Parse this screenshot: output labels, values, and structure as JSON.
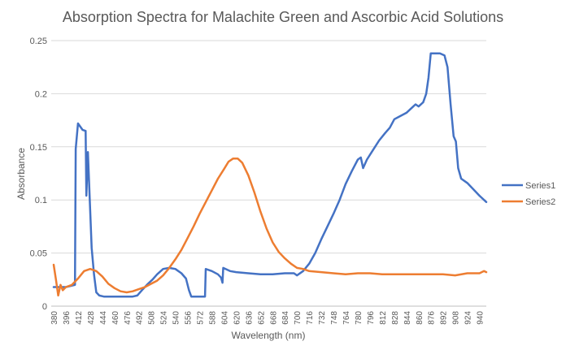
{
  "chart_data": {
    "type": "line",
    "title": "Absorption Spectra for Malachite Green and Ascorbic Acid Solutions",
    "xlabel": "Wavelength (nm)",
    "ylabel": "Absorbance",
    "xlim": [
      380,
      949
    ],
    "ylim": [
      0,
      0.25
    ],
    "yticks": [
      "0",
      "0.05",
      "0.1",
      "0.15",
      "0.2",
      "0.25"
    ],
    "xticks": [
      "380",
      "396",
      "412",
      "428",
      "444",
      "460",
      "476",
      "492",
      "508",
      "524",
      "540",
      "556",
      "572",
      "588",
      "604",
      "620",
      "636",
      "652",
      "668",
      "684",
      "700",
      "716",
      "732",
      "748",
      "764",
      "780",
      "796",
      "812",
      "828",
      "844",
      "860",
      "876",
      "892",
      "908",
      "924",
      "940"
    ],
    "grid": true,
    "legend": "right",
    "series": [
      {
        "name": "Series1",
        "color": "#4472C4",
        "points": [
          [
            380,
            0.018
          ],
          [
            396,
            0.018
          ],
          [
            408,
            0.02
          ],
          [
            409,
            0.148
          ],
          [
            412,
            0.172
          ],
          [
            418,
            0.166
          ],
          [
            422,
            0.165
          ],
          [
            423,
            0.104
          ],
          [
            425,
            0.145
          ],
          [
            428,
            0.09
          ],
          [
            430,
            0.055
          ],
          [
            433,
            0.03
          ],
          [
            436,
            0.013
          ],
          [
            440,
            0.01
          ],
          [
            446,
            0.009
          ],
          [
            452,
            0.009
          ],
          [
            460,
            0.009
          ],
          [
            468,
            0.009
          ],
          [
            476,
            0.009
          ],
          [
            484,
            0.009
          ],
          [
            490,
            0.01
          ],
          [
            496,
            0.015
          ],
          [
            504,
            0.021
          ],
          [
            510,
            0.025
          ],
          [
            516,
            0.03
          ],
          [
            524,
            0.035
          ],
          [
            532,
            0.036
          ],
          [
            540,
            0.035
          ],
          [
            548,
            0.031
          ],
          [
            554,
            0.026
          ],
          [
            558,
            0.015
          ],
          [
            561,
            0.009
          ],
          [
            566,
            0.009
          ],
          [
            576,
            0.009
          ],
          [
            579,
            0.009
          ],
          [
            580,
            0.035
          ],
          [
            588,
            0.033
          ],
          [
            596,
            0.03
          ],
          [
            600,
            0.027
          ],
          [
            602,
            0.022
          ],
          [
            603,
            0.036
          ],
          [
            612,
            0.033
          ],
          [
            620,
            0.032
          ],
          [
            636,
            0.031
          ],
          [
            652,
            0.03
          ],
          [
            668,
            0.03
          ],
          [
            684,
            0.031
          ],
          [
            696,
            0.031
          ],
          [
            700,
            0.029
          ],
          [
            708,
            0.033
          ],
          [
            716,
            0.04
          ],
          [
            724,
            0.05
          ],
          [
            732,
            0.063
          ],
          [
            740,
            0.075
          ],
          [
            748,
            0.087
          ],
          [
            756,
            0.1
          ],
          [
            764,
            0.115
          ],
          [
            772,
            0.127
          ],
          [
            780,
            0.138
          ],
          [
            784,
            0.14
          ],
          [
            787,
            0.13
          ],
          [
            792,
            0.138
          ],
          [
            800,
            0.147
          ],
          [
            808,
            0.156
          ],
          [
            816,
            0.163
          ],
          [
            822,
            0.168
          ],
          [
            828,
            0.176
          ],
          [
            836,
            0.179
          ],
          [
            844,
            0.182
          ],
          [
            850,
            0.186
          ],
          [
            856,
            0.19
          ],
          [
            860,
            0.188
          ],
          [
            866,
            0.192
          ],
          [
            870,
            0.2
          ],
          [
            873,
            0.215
          ],
          [
            876,
            0.238
          ],
          [
            882,
            0.238
          ],
          [
            888,
            0.238
          ],
          [
            894,
            0.236
          ],
          [
            898,
            0.225
          ],
          [
            902,
            0.19
          ],
          [
            906,
            0.16
          ],
          [
            909,
            0.155
          ],
          [
            912,
            0.13
          ],
          [
            916,
            0.12
          ],
          [
            924,
            0.116
          ],
          [
            932,
            0.11
          ],
          [
            940,
            0.104
          ],
          [
            949,
            0.098
          ]
        ]
      },
      {
        "name": "Series2",
        "color": "#ED7D31",
        "points": [
          [
            380,
            0.039
          ],
          [
            383,
            0.025
          ],
          [
            386,
            0.01
          ],
          [
            389,
            0.02
          ],
          [
            392,
            0.015
          ],
          [
            396,
            0.018
          ],
          [
            404,
            0.02
          ],
          [
            412,
            0.026
          ],
          [
            420,
            0.033
          ],
          [
            428,
            0.035
          ],
          [
            436,
            0.033
          ],
          [
            444,
            0.028
          ],
          [
            452,
            0.021
          ],
          [
            460,
            0.017
          ],
          [
            468,
            0.014
          ],
          [
            476,
            0.013
          ],
          [
            484,
            0.014
          ],
          [
            492,
            0.016
          ],
          [
            500,
            0.018
          ],
          [
            508,
            0.021
          ],
          [
            516,
            0.024
          ],
          [
            524,
            0.029
          ],
          [
            532,
            0.036
          ],
          [
            540,
            0.044
          ],
          [
            548,
            0.053
          ],
          [
            556,
            0.064
          ],
          [
            564,
            0.075
          ],
          [
            572,
            0.087
          ],
          [
            580,
            0.098
          ],
          [
            588,
            0.109
          ],
          [
            596,
            0.12
          ],
          [
            604,
            0.129
          ],
          [
            610,
            0.136
          ],
          [
            616,
            0.139
          ],
          [
            622,
            0.139
          ],
          [
            628,
            0.135
          ],
          [
            636,
            0.123
          ],
          [
            644,
            0.107
          ],
          [
            652,
            0.089
          ],
          [
            660,
            0.073
          ],
          [
            668,
            0.06
          ],
          [
            676,
            0.051
          ],
          [
            684,
            0.045
          ],
          [
            692,
            0.04
          ],
          [
            700,
            0.036
          ],
          [
            708,
            0.035
          ],
          [
            716,
            0.033
          ],
          [
            732,
            0.032
          ],
          [
            748,
            0.031
          ],
          [
            764,
            0.03
          ],
          [
            780,
            0.031
          ],
          [
            796,
            0.031
          ],
          [
            812,
            0.03
          ],
          [
            828,
            0.03
          ],
          [
            844,
            0.03
          ],
          [
            860,
            0.03
          ],
          [
            876,
            0.03
          ],
          [
            892,
            0.03
          ],
          [
            908,
            0.029
          ],
          [
            924,
            0.031
          ],
          [
            940,
            0.031
          ],
          [
            946,
            0.033
          ],
          [
            949,
            0.032
          ]
        ]
      }
    ]
  }
}
